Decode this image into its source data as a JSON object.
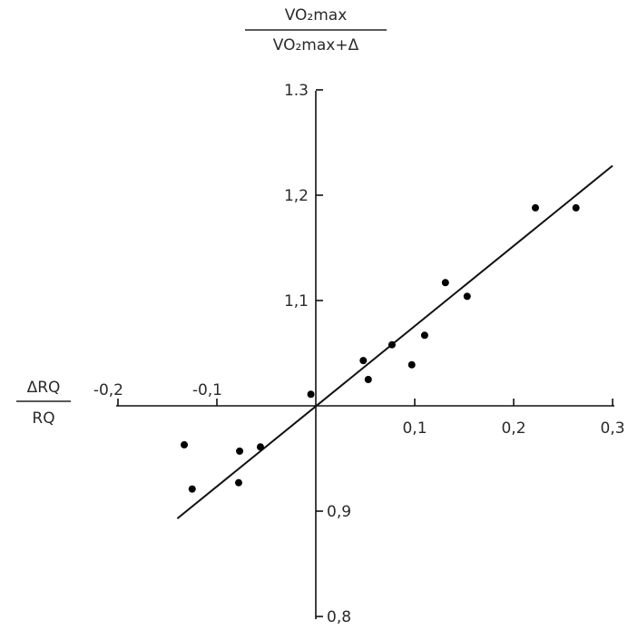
{
  "chart_data": {
    "type": "scatter",
    "x_label": {
      "numerator": "ΔRQ",
      "denominator": "RQ"
    },
    "y_label": {
      "numerator": "VO₂max",
      "denominator": "VO₂max+Δ"
    },
    "x_ticks": [
      {
        "value": -0.2,
        "label": "-0,2"
      },
      {
        "value": -0.1,
        "label": "-0,1"
      },
      {
        "value": 0.1,
        "label": "0,1"
      },
      {
        "value": 0.2,
        "label": "0,2"
      },
      {
        "value": 0.3,
        "label": "0,3"
      }
    ],
    "y_ticks": [
      {
        "value": 0.8,
        "label": "0,8"
      },
      {
        "value": 0.9,
        "label": "0,9"
      },
      {
        "value": 1.1,
        "label": "1,1"
      },
      {
        "value": 1.2,
        "label": "1,2"
      },
      {
        "value": 1.3,
        "label": "1.3"
      }
    ],
    "xlim": [
      -0.2,
      0.3
    ],
    "ylim": [
      0.8,
      1.3
    ],
    "axes_cross_at": {
      "x": 0,
      "y": 1.0
    },
    "grid": false,
    "points": [
      {
        "x": -0.133,
        "y": 0.963
      },
      {
        "x": -0.125,
        "y": 0.921
      },
      {
        "x": -0.078,
        "y": 0.927
      },
      {
        "x": -0.077,
        "y": 0.957
      },
      {
        "x": -0.056,
        "y": 0.961
      },
      {
        "x": -0.005,
        "y": 1.011
      },
      {
        "x": 0.048,
        "y": 1.043
      },
      {
        "x": 0.053,
        "y": 1.025
      },
      {
        "x": 0.077,
        "y": 1.058
      },
      {
        "x": 0.097,
        "y": 1.039
      },
      {
        "x": 0.11,
        "y": 1.067
      },
      {
        "x": 0.131,
        "y": 1.117
      },
      {
        "x": 0.153,
        "y": 1.104
      },
      {
        "x": 0.222,
        "y": 1.188
      },
      {
        "x": 0.263,
        "y": 1.188
      }
    ],
    "fit_line": {
      "x": [
        -0.14,
        0.3
      ],
      "y": [
        0.893,
        1.228
      ]
    }
  }
}
